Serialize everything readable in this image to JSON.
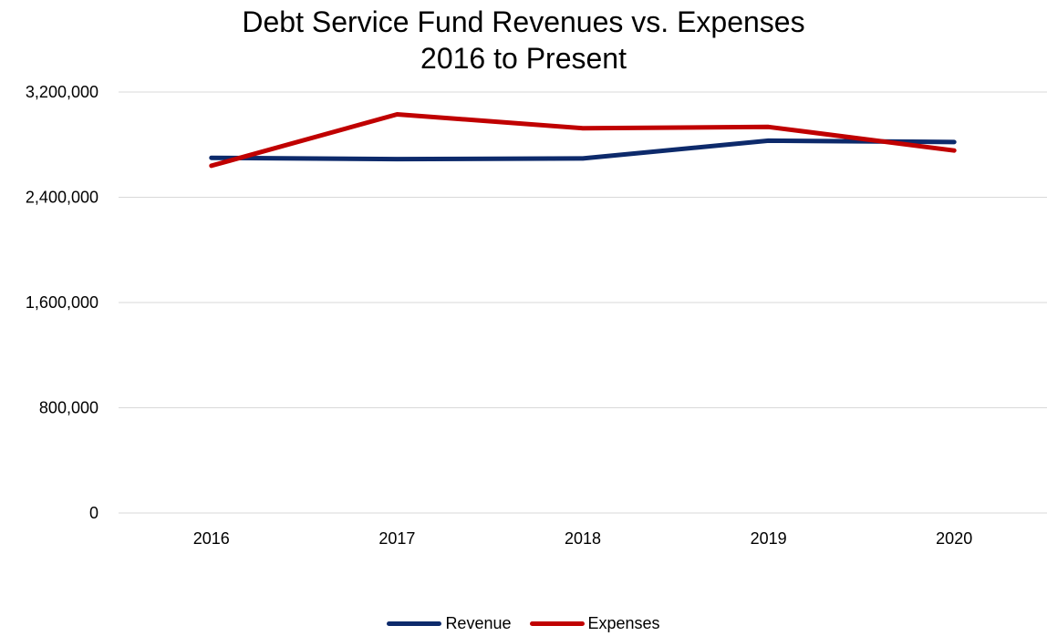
{
  "chart_data": {
    "type": "line",
    "title": "Debt Service Fund Revenues vs. Expenses",
    "subtitle": "2016 to Present",
    "xlabel": "",
    "ylabel": "",
    "categories": [
      "2016",
      "2017",
      "2018",
      "2019",
      "2020"
    ],
    "ylim": [
      0,
      3200000
    ],
    "yticks": [
      0,
      800000,
      1600000,
      2400000,
      3200000
    ],
    "ytick_labels": [
      "0",
      "800,000",
      "1,600,000",
      "2,400,000",
      "3,200,000"
    ],
    "grid": true,
    "legend_position": "bottom",
    "series": [
      {
        "name": "Revenue",
        "color": "#0d2a6b",
        "values": [
          2700000,
          2690000,
          2695000,
          2830000,
          2820000
        ]
      },
      {
        "name": "Expenses",
        "color": "#c00000",
        "values": [
          2640000,
          3030000,
          2925000,
          2935000,
          2755000
        ]
      }
    ]
  }
}
